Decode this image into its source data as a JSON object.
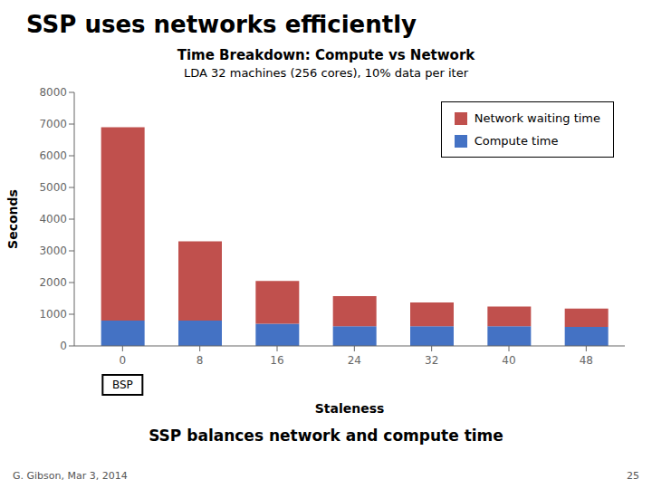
{
  "chart_data": {
    "type": "bar",
    "stacked": true,
    "title": "SSP uses networks efficiently",
    "subtitle": [
      "Time Breakdown: Compute vs Network",
      "LDA 32 machines (256 cores), 10% data per iter"
    ],
    "x": [
      0,
      8,
      16,
      24,
      32,
      40,
      48
    ],
    "series": [
      {
        "name": "Compute time",
        "color": "#4472C4",
        "values": [
          800,
          800,
          700,
          620,
          620,
          620,
          600
        ]
      },
      {
        "name": "Network waiting time",
        "color": "#C0504D",
        "values": [
          6100,
          2500,
          1350,
          950,
          750,
          620,
          580
        ]
      }
    ],
    "xlabel": "Staleness",
    "ylabel": "Seconds",
    "xlim": [
      -5,
      52
    ],
    "xticks": [
      0,
      8,
      16,
      24,
      32,
      40,
      48
    ],
    "ylim": [
      0,
      8000
    ],
    "yticks": [
      0,
      1000,
      2000,
      3000,
      4000,
      5000,
      6000,
      7000,
      8000
    ],
    "grid": false,
    "legend": "upper right",
    "annotations": [
      {
        "text": "BSP",
        "x": 0
      },
      {
        "text": "SSP balances network and compute time"
      },
      {
        "text": "G. Gibson, Mar 3, 2014"
      },
      {
        "text": "25"
      }
    ]
  }
}
